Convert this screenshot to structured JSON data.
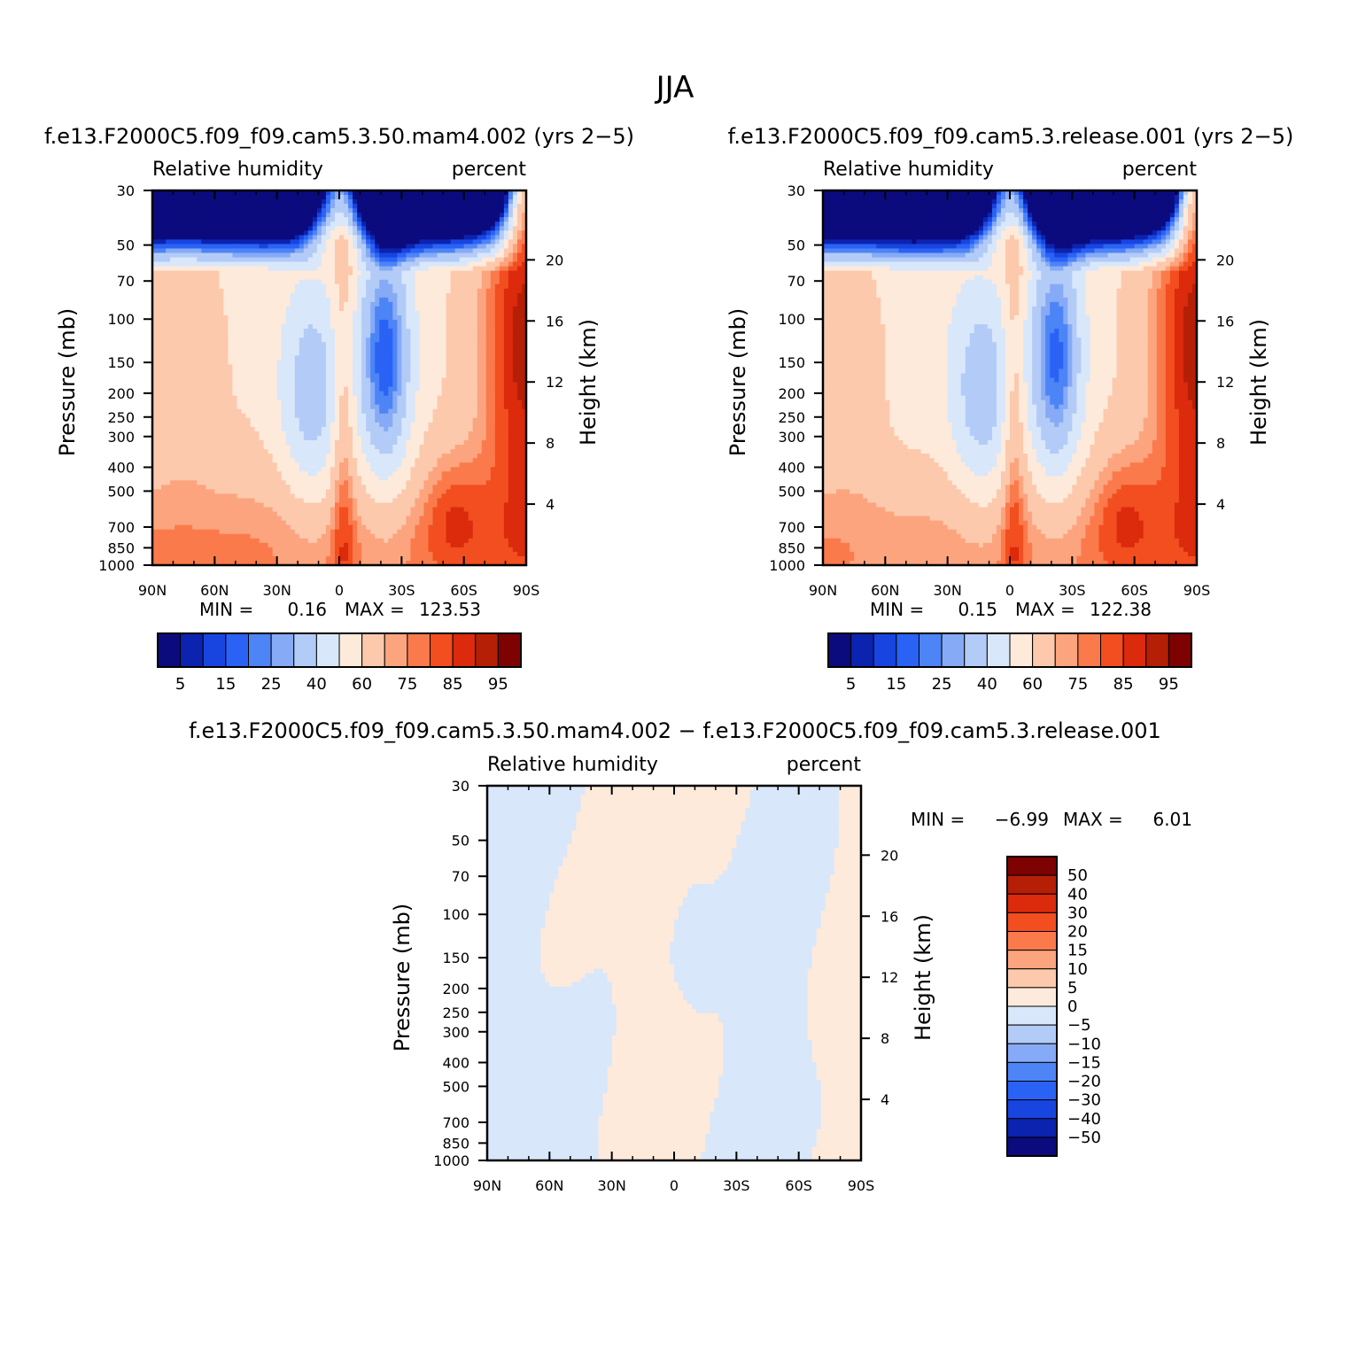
{
  "figure_title": "JJA",
  "chart_data": [
    {
      "type": "heatmap",
      "id": "p1",
      "title": "f.e13.F2000C5.f09_f09.cam5.3.50.mam4.002 (yrs 2−5)",
      "left_string": "Relative humidity",
      "right_string": "percent",
      "ylabel": "Pressure (mb)",
      "y2label": "Height (km)",
      "x_ticks": [
        "90N",
        "60N",
        "30N",
        "0",
        "30S",
        "60S",
        "90S"
      ],
      "x_tick_values": [
        90,
        60,
        30,
        0,
        -30,
        -60,
        -90
      ],
      "y_ticks": [
        30,
        50,
        70,
        100,
        150,
        200,
        250,
        300,
        400,
        500,
        700,
        850,
        1000
      ],
      "y2_ticks": [
        20,
        16,
        12,
        8,
        4
      ],
      "min_label": "MIN =",
      "min_value": "0.16",
      "max_label": "MAX =",
      "max_value": "123.53",
      "levels": [
        5,
        10,
        15,
        20,
        25,
        30,
        40,
        50,
        60,
        70,
        75,
        80,
        85,
        90,
        95
      ],
      "colorbar_labels": [
        "5",
        "15",
        "25",
        "40",
        "60",
        "75",
        "85",
        "95"
      ],
      "colors": [
        "#0b0b7e",
        "#0c23b0",
        "#1845e0",
        "#2a62f6",
        "#4d84f6",
        "#86aaf6",
        "#b3cbf7",
        "#d8e7fa",
        "#feeadb",
        "#fcc9ad",
        "#fca47e",
        "#fb7a4c",
        "#f24e20",
        "#db2a0c",
        "#b41f06",
        "#7e0202"
      ]
    },
    {
      "type": "heatmap",
      "id": "p2",
      "title": "f.e13.F2000C5.f09_f09.cam5.3.release.001 (yrs 2−5)",
      "left_string": "Relative humidity",
      "right_string": "percent",
      "ylabel": "Pressure (mb)",
      "y2label": "Height (km)",
      "x_ticks": [
        "90N",
        "60N",
        "30N",
        "0",
        "30S",
        "60S",
        "90S"
      ],
      "x_tick_values": [
        90,
        60,
        30,
        0,
        -30,
        -60,
        -90
      ],
      "y_ticks": [
        30,
        50,
        70,
        100,
        150,
        200,
        250,
        300,
        400,
        500,
        700,
        850,
        1000
      ],
      "y2_ticks": [
        20,
        16,
        12,
        8,
        4
      ],
      "min_label": "MIN =",
      "min_value": "0.15",
      "max_label": "MAX =",
      "max_value": "122.38",
      "levels": [
        5,
        10,
        15,
        20,
        25,
        30,
        40,
        50,
        60,
        70,
        75,
        80,
        85,
        90,
        95
      ],
      "colorbar_labels": [
        "5",
        "15",
        "25",
        "40",
        "60",
        "75",
        "85",
        "95"
      ],
      "colors": [
        "#0b0b7e",
        "#0c23b0",
        "#1845e0",
        "#2a62f6",
        "#4d84f6",
        "#86aaf6",
        "#b3cbf7",
        "#d8e7fa",
        "#feeadb",
        "#fcc9ad",
        "#fca47e",
        "#fb7a4c",
        "#f24e20",
        "#db2a0c",
        "#b41f06",
        "#7e0202"
      ]
    },
    {
      "type": "heatmap",
      "id": "p3",
      "title": "f.e13.F2000C5.f09_f09.cam5.3.50.mam4.002 − f.e13.F2000C5.f09_f09.cam5.3.release.001",
      "left_string": "Relative humidity",
      "right_string": "percent",
      "ylabel": "Pressure (mb)",
      "y2label": "Height (km)",
      "x_ticks": [
        "90N",
        "60N",
        "30N",
        "0",
        "30S",
        "60S",
        "90S"
      ],
      "x_tick_values": [
        90,
        60,
        30,
        0,
        -30,
        -60,
        -90
      ],
      "y_ticks": [
        30,
        50,
        70,
        100,
        150,
        200,
        250,
        300,
        400,
        500,
        700,
        850,
        1000
      ],
      "y2_ticks": [
        20,
        16,
        12,
        8,
        4
      ],
      "min_label": "MIN =",
      "min_value": "−6.99",
      "max_label": "MAX =",
      "max_value": "6.01",
      "levels": [
        -50,
        -40,
        -30,
        -20,
        -15,
        -10,
        -5,
        0,
        5,
        10,
        15,
        20,
        30,
        40,
        50
      ],
      "colorbar_labels": [
        "50",
        "40",
        "30",
        "20",
        "15",
        "10",
        "5",
        "0",
        "−5",
        "−10",
        "−15",
        "−20",
        "−30",
        "−40",
        "−50"
      ],
      "colors": [
        "#0b0b7e",
        "#0c23b0",
        "#1845e0",
        "#2a62f6",
        "#4d84f6",
        "#86aaf6",
        "#b3cbf7",
        "#d8e7fa",
        "#feeadb",
        "#fcc9ad",
        "#fca47e",
        "#fb7a4c",
        "#f24e20",
        "#db2a0c",
        "#b41f06",
        "#7e0202"
      ]
    }
  ]
}
